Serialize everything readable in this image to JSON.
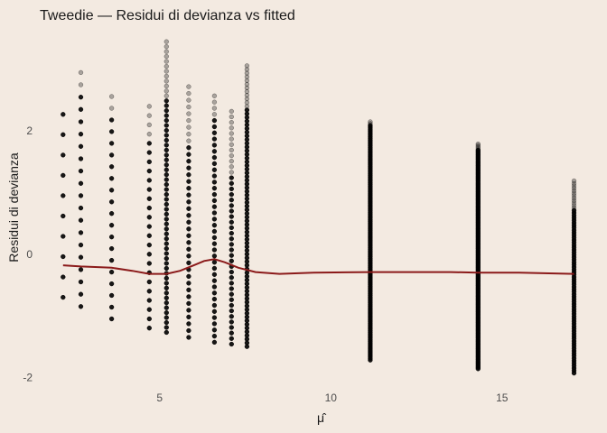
{
  "chart_data": {
    "type": "scatter",
    "title": "Tweedie — Residui di devianza vs fitted",
    "xlabel": "μ̂",
    "ylabel": "Residui di devianza",
    "xlim": [
      1.5,
      17.8
    ],
    "ylim": [
      -2.2,
      3.6
    ],
    "xticks": [
      5,
      10,
      15
    ],
    "yticks": [
      -2,
      0,
      2
    ],
    "grid": false,
    "colors": {
      "background": "#F3EAE1",
      "points": "#000000",
      "smooth": "#8B1A1A"
    },
    "point_columns": [
      {
        "x": 2.18,
        "top": 2.5,
        "bottom": -0.7,
        "solid_top": 2.35,
        "gap": 0.33
      },
      {
        "x": 2.7,
        "top": 3.1,
        "bottom": -0.85,
        "solid_top": 2.7,
        "gap": 0.2
      },
      {
        "x": 3.6,
        "top": 2.7,
        "bottom": -1.05,
        "solid_top": 2.2,
        "gap": 0.19
      },
      {
        "x": 4.7,
        "top": 2.5,
        "bottom": -1.2,
        "solid_top": 1.9,
        "gap": 0.15
      },
      {
        "x": 5.2,
        "top": 3.45,
        "bottom": -1.27,
        "solid_top": 2.55,
        "gap": 0.08
      },
      {
        "x": 5.85,
        "top": 2.75,
        "bottom": -1.35,
        "solid_top": 1.8,
        "gap": 0.11
      },
      {
        "x": 6.6,
        "top": 2.6,
        "bottom": -1.43,
        "solid_top": 2.2,
        "gap": 0.1
      },
      {
        "x": 7.1,
        "top": 2.4,
        "bottom": -1.46,
        "solid_top": 1.3,
        "gap": 0.09
      },
      {
        "x": 7.55,
        "top": 3.1,
        "bottom": -1.5,
        "solid_top": 2.4,
        "gap": 0.06
      },
      {
        "x": 11.15,
        "top": 2.15,
        "bottom": -1.72,
        "solid_top": 2.1,
        "gap": 0.03
      },
      {
        "x": 14.3,
        "top": 1.8,
        "bottom": -1.86,
        "solid_top": 1.7,
        "gap": 0.025
      },
      {
        "x": 17.1,
        "top": 1.2,
        "bottom": -1.93,
        "solid_top": 0.75,
        "gap": 0.04
      }
    ],
    "smooth_line": {
      "x": [
        2.18,
        2.7,
        3.2,
        3.6,
        4.2,
        4.7,
        5.2,
        5.6,
        6.0,
        6.3,
        6.6,
        6.9,
        7.3,
        7.8,
        8.5,
        9.5,
        11.15,
        12.5,
        13.5,
        14.3,
        15.5,
        17.1
      ],
      "y": [
        -0.18,
        -0.2,
        -0.21,
        -0.22,
        -0.27,
        -0.32,
        -0.32,
        -0.27,
        -0.18,
        -0.11,
        -0.08,
        -0.13,
        -0.22,
        -0.29,
        -0.32,
        -0.3,
        -0.29,
        -0.29,
        -0.29,
        -0.3,
        -0.3,
        -0.32
      ]
    }
  }
}
